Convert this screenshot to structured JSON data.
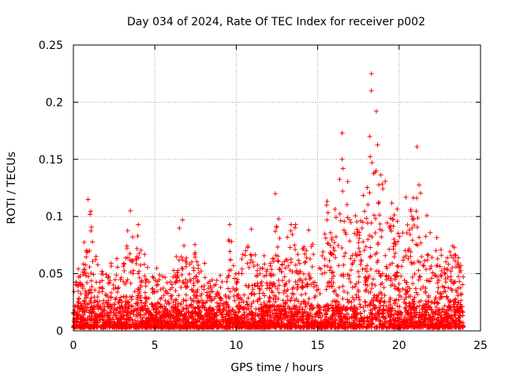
{
  "chart_data": {
    "type": "scatter",
    "title": "Day 034 of 2024, Rate Of TEC Index for receiver p002",
    "xlabel": "GPS time / hours",
    "ylabel": "ROTI / TECUs",
    "xlim": [
      0,
      25
    ],
    "ylim": [
      0,
      0.25
    ],
    "xticks": [
      0,
      5,
      10,
      15,
      20,
      25
    ],
    "xtick_labels": [
      "0",
      "5",
      "10",
      "15",
      "20",
      "25"
    ],
    "yticks": [
      0,
      0.05,
      0.1,
      0.15,
      0.2,
      0.25
    ],
    "ytick_labels": [
      "0",
      "0.05",
      "0.1",
      "0.15",
      "0.2",
      "0.25"
    ],
    "grid": true,
    "marker": "+",
    "color": "#ff0000",
    "data_x_range": [
      0,
      24
    ],
    "envelope_hours": [
      0,
      0.5,
      1,
      1.5,
      2,
      2.5,
      3,
      3.5,
      4,
      4.5,
      5,
      5.5,
      6,
      6.5,
      7,
      7.5,
      8,
      8.5,
      9,
      9.5,
      10,
      10.5,
      11,
      11.5,
      12,
      12.5,
      13,
      13.5,
      14,
      14.5,
      15,
      15.5,
      16,
      16.5,
      17,
      17.5,
      18,
      18.5,
      19,
      19.5,
      20,
      20.5,
      21,
      21.5,
      22,
      22.5,
      23,
      23.5,
      24
    ],
    "envelope_roti": [
      0.05,
      0.06,
      0.115,
      0.06,
      0.055,
      0.065,
      0.07,
      0.105,
      0.095,
      0.065,
      0.06,
      0.055,
      0.045,
      0.095,
      0.075,
      0.075,
      0.06,
      0.05,
      0.05,
      0.095,
      0.06,
      0.095,
      0.1,
      0.07,
      0.065,
      0.12,
      0.085,
      0.11,
      0.085,
      0.1,
      0.08,
      0.13,
      0.115,
      0.175,
      0.115,
      0.1,
      0.17,
      0.225,
      0.145,
      0.14,
      0.11,
      0.12,
      0.16,
      0.115,
      0.105,
      0.08,
      0.075,
      0.09,
      0.05
    ],
    "highlights": [
      {
        "x": 18.3,
        "y": 0.225
      },
      {
        "x": 18.3,
        "y": 0.21
      },
      {
        "x": 18.6,
        "y": 0.192
      },
      {
        "x": 16.5,
        "y": 0.173
      },
      {
        "x": 18.2,
        "y": 0.17
      },
      {
        "x": 21.1,
        "y": 0.161
      },
      {
        "x": 16.5,
        "y": 0.15
      },
      {
        "x": 12.4,
        "y": 0.12
      },
      {
        "x": 0.9,
        "y": 0.115
      },
      {
        "x": 3.5,
        "y": 0.105
      },
      {
        "x": 6.7,
        "y": 0.097
      },
      {
        "x": 9.6,
        "y": 0.093
      }
    ]
  }
}
